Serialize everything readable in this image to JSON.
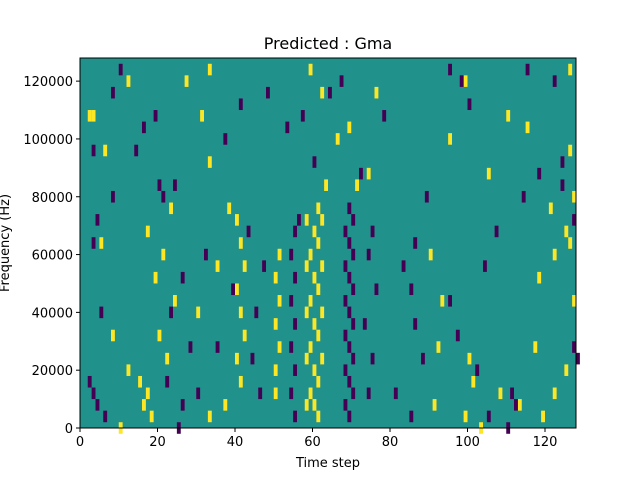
{
  "chart_data": {
    "type": "heatmap",
    "title": "Predicted : Gma",
    "xlabel": "Time step",
    "ylabel": "Frequency (Hz)",
    "xlim": [
      0,
      128
    ],
    "ylim": [
      0,
      128000
    ],
    "x_ticks": [
      0,
      20,
      40,
      60,
      80,
      100,
      120
    ],
    "y_ticks": [
      0,
      20000,
      40000,
      60000,
      80000,
      100000,
      120000
    ],
    "grid": false,
    "legend": "none",
    "colors": {
      "background": "#21918c",
      "high": "#fde725",
      "low": "#440154"
    },
    "n_time_steps": 128,
    "n_frequency_bins": 64,
    "cell_values": "sparse binary mask: default value 0 (teal); isolated cells of +1 (yellow) and -1 (purple) scattered across time steps 0-128, with a dense vertical band of +1 values around time steps 58-62 and -1 values around 66-70 spanning 0-80000 Hz",
    "series": [
      {
        "name": "high",
        "points": [
          [
            61,
            5000
          ],
          [
            60,
            9000
          ],
          [
            59,
            13000
          ],
          [
            61,
            17000
          ],
          [
            60,
            21000
          ],
          [
            62,
            25000
          ],
          [
            59,
            29000
          ],
          [
            61,
            33000
          ],
          [
            60,
            37000
          ],
          [
            62,
            41000
          ],
          [
            59,
            45000
          ],
          [
            61,
            49000
          ],
          [
            60,
            53000
          ],
          [
            62,
            57000
          ],
          [
            59,
            61000
          ],
          [
            61,
            65000
          ],
          [
            60,
            69000
          ],
          [
            62,
            73000
          ],
          [
            61,
            77000
          ],
          [
            58,
            9000
          ],
          [
            58,
            25000
          ],
          [
            58,
            41000
          ],
          [
            58,
            57000
          ],
          [
            58,
            73000
          ],
          [
            41,
            17000
          ],
          [
            40,
            25000
          ],
          [
            42,
            33000
          ],
          [
            41,
            41000
          ],
          [
            40,
            49000
          ],
          [
            42,
            57000
          ],
          [
            41,
            65000
          ],
          [
            40,
            73000
          ],
          [
            50,
            13000
          ],
          [
            50,
            21000
          ],
          [
            51,
            29000
          ],
          [
            50,
            37000
          ],
          [
            51,
            45000
          ],
          [
            50,
            53000
          ],
          [
            51,
            61000
          ],
          [
            16,
            9000
          ],
          [
            17,
            13000
          ],
          [
            15,
            17000
          ],
          [
            18,
            5000
          ],
          [
            12,
            21000
          ],
          [
            22,
            25000
          ],
          [
            20,
            33000
          ],
          [
            24,
            45000
          ],
          [
            19,
            53000
          ],
          [
            21,
            61000
          ],
          [
            17,
            69000
          ],
          [
            23,
            77000
          ],
          [
            101,
            17000
          ],
          [
            100,
            25000
          ],
          [
            99,
            5000
          ],
          [
            103,
            1000
          ],
          [
            108,
            13000
          ],
          [
            113,
            9000
          ],
          [
            119,
            5000
          ],
          [
            122,
            13000
          ],
          [
            117,
            29000
          ],
          [
            125,
            21000
          ],
          [
            127,
            45000
          ],
          [
            118,
            53000
          ],
          [
            122,
            61000
          ],
          [
            125,
            69000
          ],
          [
            121,
            77000
          ],
          [
            127,
            81000
          ],
          [
            37,
            9000
          ],
          [
            33,
            5000
          ],
          [
            30,
            41000
          ],
          [
            35,
            57000
          ],
          [
            38,
            77000
          ],
          [
            33,
            93000
          ],
          [
            31,
            109000
          ],
          [
            27,
            121000
          ],
          [
            33,
            125000
          ],
          [
            71,
            85000
          ],
          [
            74,
            89000
          ],
          [
            69,
            105000
          ],
          [
            76,
            117000
          ],
          [
            63,
            85000
          ],
          [
            66,
            101000
          ],
          [
            62,
            117000
          ],
          [
            59,
            125000
          ],
          [
            10,
            1000
          ],
          [
            8,
            33000
          ],
          [
            5,
            65000
          ],
          [
            3,
            109000
          ],
          [
            12,
            121000
          ],
          [
            6,
            97000
          ],
          [
            2,
            109000
          ],
          [
            91,
            9000
          ],
          [
            92,
            29000
          ],
          [
            93,
            45000
          ],
          [
            90,
            61000
          ],
          [
            95,
            101000
          ],
          [
            99,
            121000
          ],
          [
            105,
            89000
          ],
          [
            110,
            109000
          ],
          [
            115,
            105000
          ],
          [
            126,
            125000
          ],
          [
            126,
            97000
          ],
          [
            126,
            65000
          ]
        ]
      },
      {
        "name": "low",
        "points": [
          [
            69,
            5000
          ],
          [
            68,
            9000
          ],
          [
            70,
            13000
          ],
          [
            69,
            17000
          ],
          [
            68,
            21000
          ],
          [
            70,
            25000
          ],
          [
            69,
            29000
          ],
          [
            68,
            33000
          ],
          [
            70,
            37000
          ],
          [
            69,
            41000
          ],
          [
            68,
            45000
          ],
          [
            70,
            49000
          ],
          [
            69,
            53000
          ],
          [
            68,
            57000
          ],
          [
            70,
            61000
          ],
          [
            69,
            65000
          ],
          [
            68,
            69000
          ],
          [
            70,
            73000
          ],
          [
            69,
            77000
          ],
          [
            55,
            5000
          ],
          [
            54,
            13000
          ],
          [
            55,
            21000
          ],
          [
            54,
            29000
          ],
          [
            55,
            37000
          ],
          [
            54,
            45000
          ],
          [
            55,
            53000
          ],
          [
            54,
            61000
          ],
          [
            55,
            69000
          ],
          [
            56,
            73000
          ],
          [
            74,
            13000
          ],
          [
            75,
            25000
          ],
          [
            73,
            37000
          ],
          [
            76,
            49000
          ],
          [
            74,
            61000
          ],
          [
            75,
            69000
          ],
          [
            3,
            13000
          ],
          [
            4,
            9000
          ],
          [
            6,
            5000
          ],
          [
            2,
            17000
          ],
          [
            5,
            41000
          ],
          [
            3,
            65000
          ],
          [
            4,
            73000
          ],
          [
            8,
            81000
          ],
          [
            3,
            97000
          ],
          [
            46,
            13000
          ],
          [
            44,
            25000
          ],
          [
            45,
            41000
          ],
          [
            47,
            57000
          ],
          [
            43,
            69000
          ],
          [
            25,
            1000
          ],
          [
            26,
            9000
          ],
          [
            22,
            17000
          ],
          [
            28,
            29000
          ],
          [
            23,
            41000
          ],
          [
            26,
            53000
          ],
          [
            21,
            81000
          ],
          [
            24,
            85000
          ],
          [
            111,
            13000
          ],
          [
            112,
            9000
          ],
          [
            110,
            1000
          ],
          [
            105,
            5000
          ],
          [
            102,
            21000
          ],
          [
            97,
            33000
          ],
          [
            95,
            45000
          ],
          [
            104,
            57000
          ],
          [
            107,
            69000
          ],
          [
            114,
            81000
          ],
          [
            118,
            89000
          ],
          [
            124,
            93000
          ],
          [
            127,
            29000
          ],
          [
            128,
            25000
          ],
          [
            81,
            13000
          ],
          [
            85,
            5000
          ],
          [
            88,
            25000
          ],
          [
            86,
            37000
          ],
          [
            85,
            49000
          ],
          [
            83,
            57000
          ],
          [
            86,
            65000
          ],
          [
            89,
            81000
          ],
          [
            57,
            109000
          ],
          [
            60,
            93000
          ],
          [
            64,
            117000
          ],
          [
            67,
            121000
          ],
          [
            72,
            89000
          ],
          [
            78,
            109000
          ],
          [
            14,
            97000
          ],
          [
            16,
            105000
          ],
          [
            19,
            109000
          ],
          [
            10,
            125000
          ],
          [
            8,
            117000
          ],
          [
            20,
            85000
          ],
          [
            30,
            13000
          ],
          [
            35,
            29000
          ],
          [
            39,
            49000
          ],
          [
            32,
            61000
          ],
          [
            37,
            101000
          ],
          [
            41,
            113000
          ],
          [
            48,
            117000
          ],
          [
            53,
            105000
          ],
          [
            100,
            113000
          ],
          [
            98,
            121000
          ],
          [
            95,
            125000
          ],
          [
            115,
            125000
          ],
          [
            122,
            121000
          ],
          [
            124,
            85000
          ],
          [
            127,
            73000
          ]
        ]
      }
    ]
  }
}
